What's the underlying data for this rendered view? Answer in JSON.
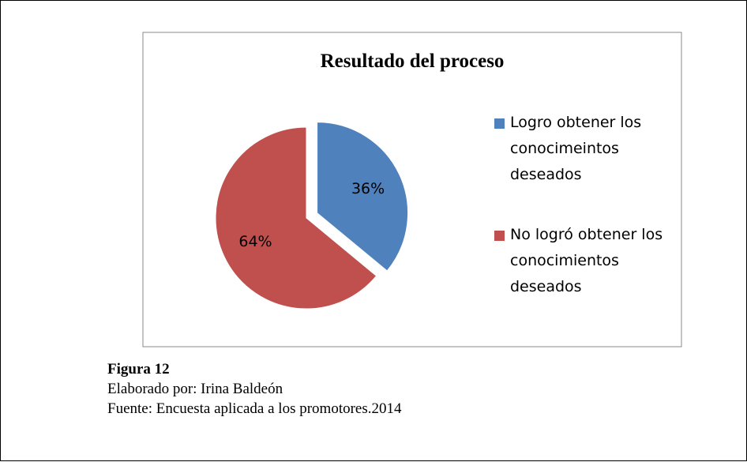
{
  "chart_data": {
    "type": "pie",
    "title": "Resultado del proceso",
    "categories": [
      "Logro obtener los conocimeintos deseados",
      "No logró obtener los conocimientos deseados"
    ],
    "values": [
      36,
      64
    ],
    "value_labels": [
      "36%",
      "64%"
    ],
    "colors": [
      "#4f81bd",
      "#c0504d"
    ],
    "legend": "right"
  },
  "caption": {
    "figure": "Figura 12",
    "author": "Elaborado por: Irina Baldeón",
    "source": "Fuente: Encuesta aplicada a los promotores.2014"
  }
}
